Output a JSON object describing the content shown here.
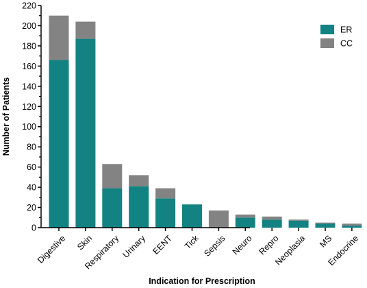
{
  "chart_data": {
    "type": "bar",
    "stacked": true,
    "categories": [
      "Digestive",
      "Skin",
      "Respiratory",
      "Urinary",
      "EENT",
      "Tick",
      "Sepsis",
      "Neuro",
      "Repro",
      "Neoplasia",
      "MS",
      "Endocrine"
    ],
    "series": [
      {
        "name": "ER",
        "color": "#128282",
        "values": [
          166,
          187,
          39,
          41,
          29,
          23,
          0,
          10,
          8,
          7,
          4,
          2
        ]
      },
      {
        "name": "CC",
        "color": "#838383",
        "values": [
          44,
          17,
          24,
          11,
          10,
          0,
          17,
          3,
          3,
          1,
          1,
          2
        ]
      }
    ],
    "xlabel": "Indication for Prescription",
    "ylabel": "Number of Patients",
    "ylim": [
      0,
      220
    ],
    "yticks": [
      0,
      20,
      40,
      60,
      80,
      100,
      120,
      140,
      160,
      180,
      200,
      220
    ],
    "grid": false,
    "legend_position": "top-right"
  }
}
